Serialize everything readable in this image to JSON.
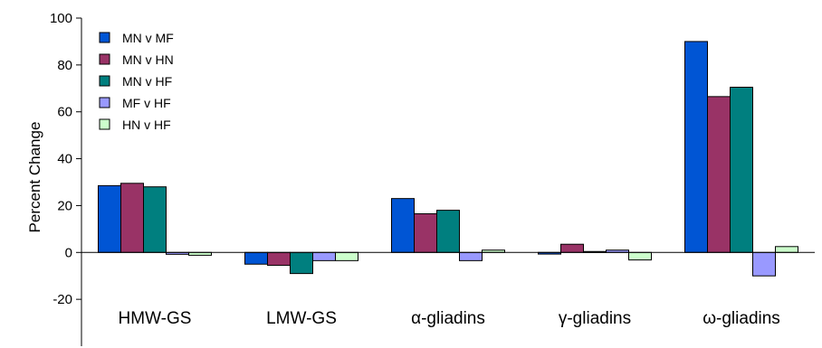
{
  "chart_data": {
    "type": "bar",
    "title": "",
    "xlabel": "",
    "ylabel": "Percent Change",
    "ylim": [
      -40,
      100
    ],
    "yticks": [
      -20,
      0,
      20,
      40,
      60,
      80,
      100
    ],
    "ytick_labels": [
      "-20",
      "0",
      "20",
      "40",
      "60",
      "80",
      "100"
    ],
    "grid": false,
    "legend_position": "top-left",
    "categories": [
      "HMW-GS",
      "LMW-GS",
      "α-gliadins",
      "γ-gliadins",
      "ω-gliadins"
    ],
    "series": [
      {
        "name": "MN v MF",
        "color": "#0055d4",
        "values": [
          28.5,
          -5,
          23,
          -0.7,
          90
        ]
      },
      {
        "name": "MN v HN",
        "color": "#993366",
        "values": [
          29.5,
          -5.5,
          16.5,
          3.5,
          66.5
        ]
      },
      {
        "name": "MN v HF",
        "color": "#007f7f",
        "values": [
          28,
          -9,
          18,
          0.4,
          70.5
        ]
      },
      {
        "name": "MF v HF",
        "color": "#9999ff",
        "values": [
          -0.8,
          -3.5,
          -3.5,
          1,
          -10
        ]
      },
      {
        "name": "HN v HF",
        "color": "#ccffcc",
        "values": [
          -1.2,
          -3.5,
          1,
          -3.2,
          2.5
        ]
      }
    ]
  }
}
